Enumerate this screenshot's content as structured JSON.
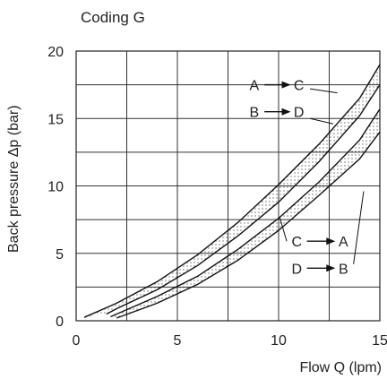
{
  "chart_data": {
    "type": "line",
    "title": "Coding G",
    "xlabel": "Flow Q (lpm)",
    "ylabel": "Back pressure  Δp (bar)",
    "xlim": [
      0,
      15
    ],
    "ylim": [
      0,
      20
    ],
    "grid": true,
    "x_ticks": [
      "0",
      "5",
      "10",
      "15"
    ],
    "y_ticks": [
      "0",
      "5",
      "10",
      "15",
      "20"
    ],
    "series": [
      {
        "x": [
          0.4,
          2,
          4,
          6,
          8,
          10,
          12,
          14,
          15
        ],
        "values": [
          0.25,
          1.3,
          2.9,
          4.9,
          7.3,
          10.1,
          13.1,
          16.5,
          19.0
        ]
      },
      {
        "x": [
          1.5,
          2,
          4,
          6,
          8,
          10,
          12,
          14,
          15
        ],
        "values": [
          0.5,
          0.9,
          2.3,
          4.1,
          6.3,
          8.8,
          11.8,
          15.2,
          17.5
        ]
      },
      {
        "x": [
          1.7,
          2,
          4,
          6,
          8,
          10,
          12,
          14,
          15
        ],
        "values": [
          0.3,
          0.5,
          1.8,
          3.3,
          5.3,
          7.6,
          10.3,
          13.4,
          15.7
        ]
      },
      {
        "x": [
          2.0,
          4,
          6,
          8,
          10,
          12,
          14,
          15
        ],
        "values": [
          0.2,
          1.3,
          2.7,
          4.5,
          6.7,
          9.3,
          12.0,
          14.0
        ]
      }
    ],
    "annotations": [
      {
        "text": "A",
        "x": 8.8,
        "y": 17.5
      },
      {
        "text": "C",
        "x": 11.0,
        "y": 17.5
      },
      {
        "text": "B",
        "x": 8.8,
        "y": 15.5
      },
      {
        "text": "D",
        "x": 11.0,
        "y": 15.5
      },
      {
        "text": "C",
        "x": 10.9,
        "y": 5.9
      },
      {
        "text": "A",
        "x": 13.2,
        "y": 5.9
      },
      {
        "text": "D",
        "x": 10.9,
        "y": 3.9
      },
      {
        "text": "B",
        "x": 13.2,
        "y": 3.9
      }
    ]
  }
}
